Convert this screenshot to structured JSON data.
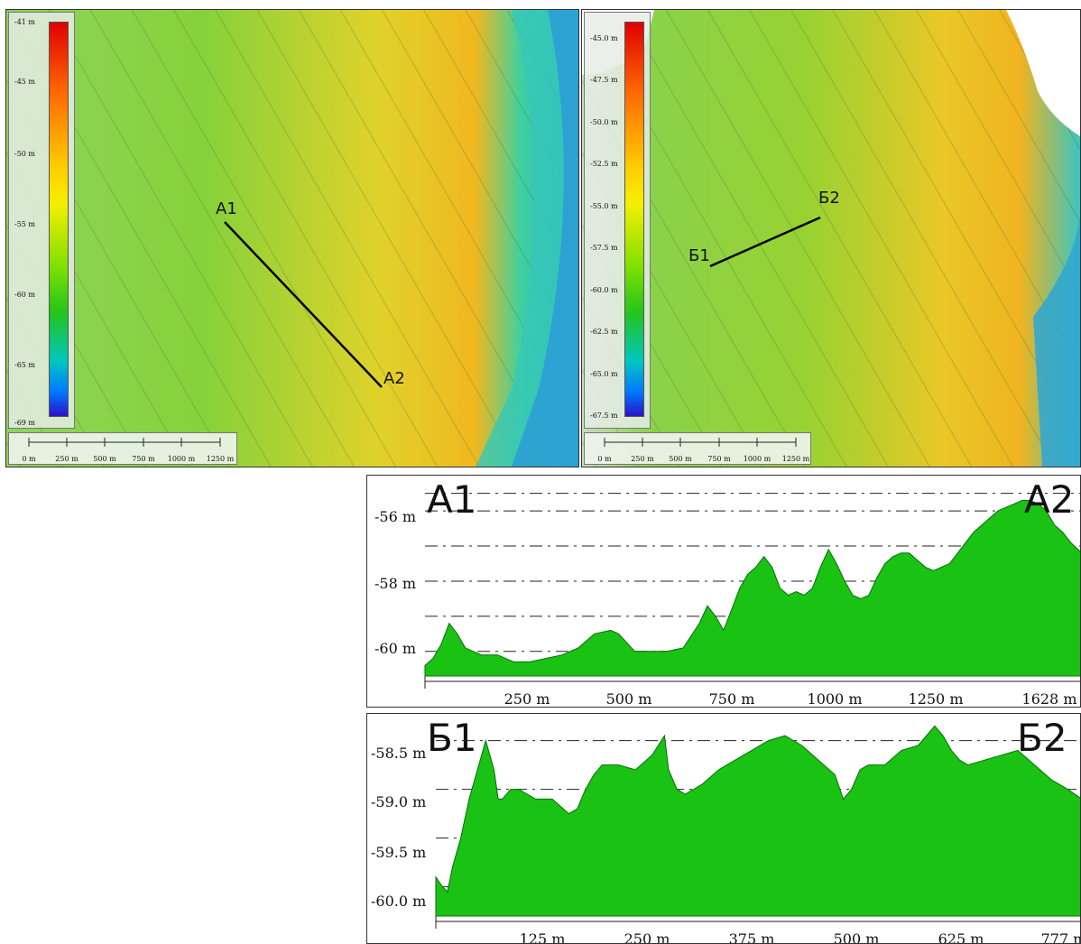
{
  "maps": [
    {
      "id": "map-a",
      "legend_ticks": [
        "-41 m",
        "-45 m",
        "-50 m",
        "-55 m",
        "-60 m",
        "-65 m",
        "-69 m"
      ],
      "scale_labels": [
        "0 m",
        "250 m",
        "500 m",
        "750 m",
        "1000 m",
        "1250 m"
      ],
      "line_start_label": "A1",
      "line_end_label": "A2"
    },
    {
      "id": "map-b",
      "legend_ticks": [
        "-45.0 m",
        "-47.5 m",
        "-50.0 m",
        "-52.5 m",
        "-55.0 m",
        "-57.5 m",
        "-60.0 m",
        "-62.5 m",
        "-65.0 m",
        "-67.5 m"
      ],
      "scale_labels": [
        "0 m",
        "250 m",
        "500 m",
        "750 m",
        "1000 m",
        "1250 m"
      ],
      "line_start_label": "Б1",
      "line_end_label": "Б2"
    }
  ],
  "colors": {
    "profile_fill": "#19c213",
    "profile_line": "#0a6d08",
    "ramp": [
      "#e00000",
      "#ff6a00",
      "#ffd200",
      "#f4f000",
      "#7fe000",
      "#22c41c",
      "#00c7c0",
      "#0077ff",
      "#2a12c8"
    ]
  },
  "chart_data": [
    {
      "type": "area",
      "start_label": "A1",
      "end_label": "A2",
      "y_ticks": [
        "-56 m",
        "-58 m",
        "-60 m"
      ],
      "x_ticks": [
        "250 m",
        "500 m",
        "750 m",
        "1000 m",
        "1250 m",
        "1628 m"
      ],
      "xlim": [
        0,
        1628
      ],
      "ylim": [
        -60.7,
        -55.2
      ],
      "x": [
        0,
        20,
        40,
        60,
        80,
        100,
        140,
        180,
        220,
        260,
        300,
        340,
        380,
        420,
        460,
        480,
        520,
        560,
        600,
        640,
        680,
        700,
        720,
        740,
        760,
        780,
        800,
        820,
        840,
        860,
        880,
        900,
        920,
        940,
        960,
        980,
        1000,
        1020,
        1040,
        1060,
        1080,
        1100,
        1120,
        1140,
        1160,
        1180,
        1200,
        1220,
        1240,
        1260,
        1280,
        1300,
        1320,
        1340,
        1360,
        1380,
        1400,
        1420,
        1440,
        1460,
        1480,
        1500,
        1520,
        1540,
        1560,
        1580,
        1600,
        1628
      ],
      "y": [
        -60.4,
        -60.2,
        -59.8,
        -59.2,
        -59.5,
        -59.9,
        -60.1,
        -60.1,
        -60.3,
        -60.3,
        -60.2,
        -60.1,
        -59.9,
        -59.5,
        -59.4,
        -59.5,
        -60.0,
        -60.0,
        -60.0,
        -59.9,
        -59.2,
        -58.7,
        -59.0,
        -59.4,
        -58.8,
        -58.2,
        -57.8,
        -57.6,
        -57.3,
        -57.6,
        -58.2,
        -58.4,
        -58.3,
        -58.4,
        -58.2,
        -57.6,
        -57.1,
        -57.5,
        -58.0,
        -58.4,
        -58.5,
        -58.4,
        -57.9,
        -57.5,
        -57.3,
        -57.2,
        -57.2,
        -57.4,
        -57.6,
        -57.7,
        -57.6,
        -57.5,
        -57.2,
        -56.9,
        -56.6,
        -56.4,
        -56.2,
        -56.0,
        -55.9,
        -55.8,
        -55.7,
        -55.7,
        -55.8,
        -56.0,
        -56.4,
        -56.6,
        -56.9,
        -57.2
      ]
    },
    {
      "type": "area",
      "start_label": "Б1",
      "end_label": "Б2",
      "y_ticks": [
        "-58.5 m",
        "-59.0 m",
        "-59.5 m",
        "-60.0 m"
      ],
      "x_ticks": [
        "125 m",
        "250 m",
        "375 m",
        "500 m",
        "625 m",
        "777 m"
      ],
      "xlim": [
        0,
        777
      ],
      "ylim": [
        -60.3,
        -58.3
      ],
      "x": [
        0,
        8,
        14,
        20,
        30,
        40,
        50,
        60,
        70,
        75,
        80,
        90,
        100,
        120,
        140,
        160,
        170,
        180,
        190,
        200,
        220,
        240,
        260,
        275,
        280,
        290,
        300,
        320,
        340,
        360,
        380,
        400,
        420,
        440,
        460,
        480,
        490,
        500,
        510,
        520,
        540,
        560,
        580,
        600,
        610,
        620,
        630,
        640,
        660,
        680,
        700,
        720,
        740,
        760,
        777
      ],
      "y": [
        -59.9,
        -60.0,
        -60.05,
        -59.8,
        -59.5,
        -59.1,
        -58.8,
        -58.5,
        -58.8,
        -59.1,
        -59.1,
        -59.0,
        -59.0,
        -59.1,
        -59.1,
        -59.25,
        -59.2,
        -59.0,
        -58.85,
        -58.75,
        -58.75,
        -58.8,
        -58.65,
        -58.45,
        -58.8,
        -59.0,
        -59.05,
        -58.95,
        -58.8,
        -58.7,
        -58.6,
        -58.5,
        -58.45,
        -58.55,
        -58.7,
        -58.85,
        -59.1,
        -59.0,
        -58.8,
        -58.75,
        -58.75,
        -58.6,
        -58.55,
        -58.35,
        -58.45,
        -58.6,
        -58.7,
        -58.75,
        -58.7,
        -58.65,
        -58.6,
        -58.75,
        -58.9,
        -59.0,
        -59.1
      ]
    }
  ]
}
